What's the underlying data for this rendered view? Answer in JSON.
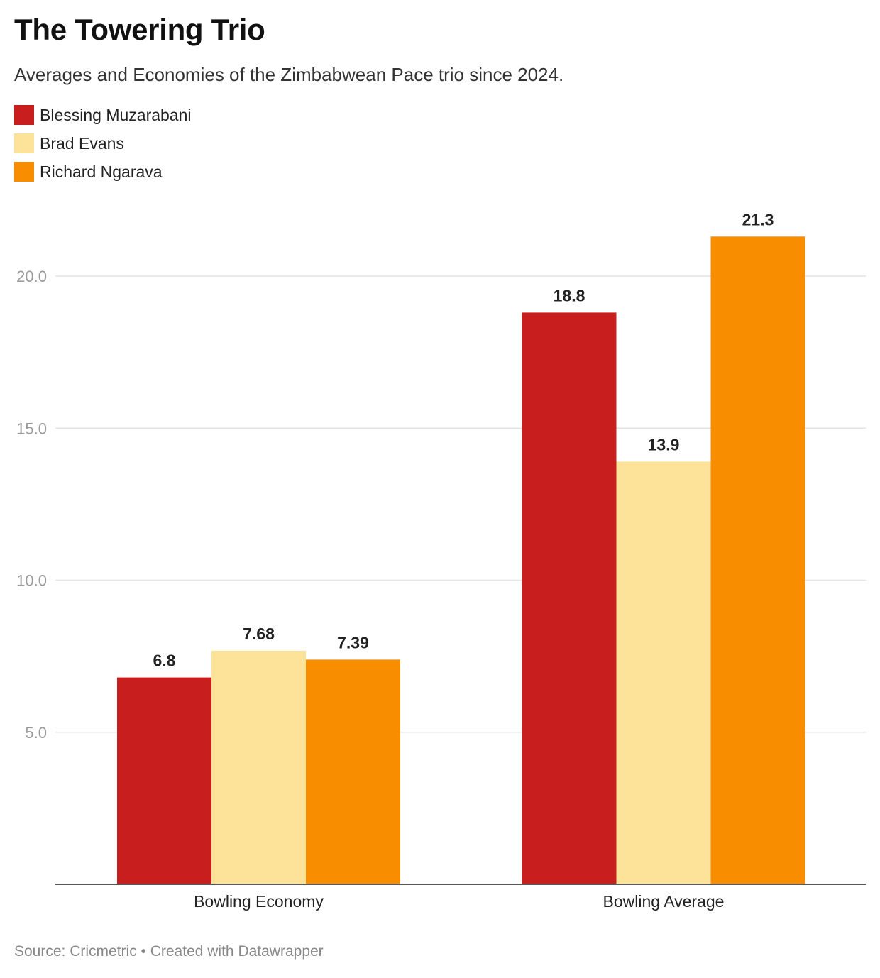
{
  "title": "The Towering Trio",
  "subtitle": "Averages and Economies of the Zimbabwean Pace trio since 2024.",
  "footer": "Source: Cricmetric • Created with Datawrapper",
  "chart_data": {
    "type": "bar",
    "title": "The Towering Trio",
    "subtitle": "Averages and Economies of the Zimbabwean Pace trio since 2024.",
    "categories": [
      "Bowling Economy",
      "Bowling Average"
    ],
    "series": [
      {
        "name": "Blessing Muzarabani",
        "color": "#c91e1e",
        "values": [
          6.8,
          18.8
        ],
        "labels": [
          "6.8",
          "18.8"
        ]
      },
      {
        "name": "Brad Evans",
        "color": "#fde39a",
        "values": [
          7.68,
          13.9
        ],
        "labels": [
          "7.68",
          "13.9"
        ]
      },
      {
        "name": "Richard Ngarava",
        "color": "#f98d00",
        "values": [
          7.39,
          21.3
        ],
        "labels": [
          "7.39",
          "21.3"
        ]
      }
    ],
    "ylim": [
      0,
      22
    ],
    "yticks": [
      5,
      10,
      15,
      20
    ],
    "ytick_labels": [
      "5.0",
      "10.0",
      "15.0",
      "20.0"
    ],
    "xlabel": "",
    "ylabel": "",
    "grid": true,
    "legend": "top-left"
  }
}
